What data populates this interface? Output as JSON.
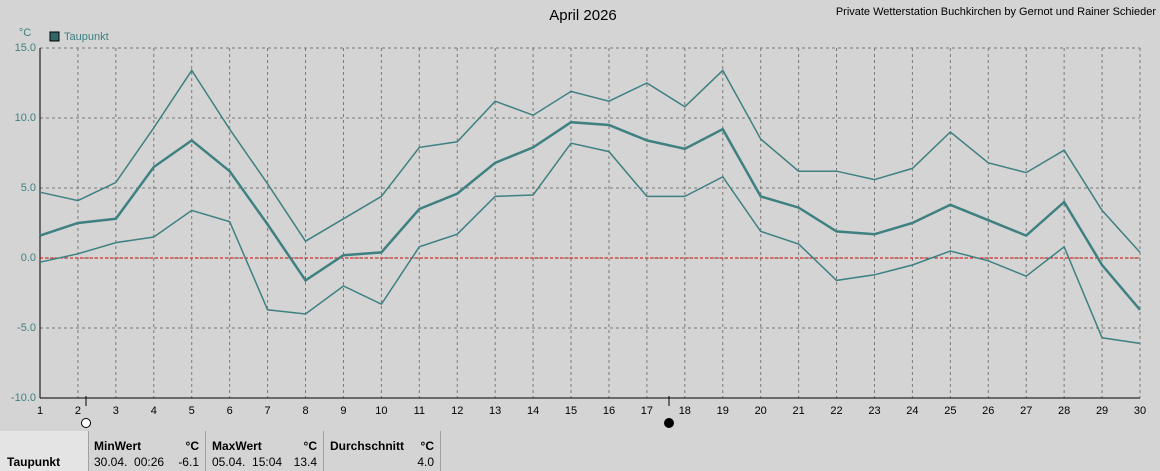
{
  "chart_data": {
    "type": "line",
    "title": "April 2026",
    "subtitle": "Private Wetterstation Buchkirchen by Gernot und Rainer Schieder",
    "y_label": "°C",
    "legend": "top-left",
    "grid": true,
    "hline": {
      "value": 0,
      "color": "#e00000"
    },
    "x": [
      1,
      2,
      3,
      4,
      5,
      6,
      7,
      8,
      9,
      10,
      11,
      12,
      13,
      14,
      15,
      16,
      17,
      18,
      19,
      20,
      21,
      22,
      23,
      24,
      25,
      26,
      27,
      28,
      29,
      30
    ],
    "xlim": [
      1,
      30
    ],
    "xticks": [
      1,
      2,
      3,
      4,
      5,
      6,
      7,
      8,
      9,
      10,
      11,
      12,
      13,
      14,
      15,
      16,
      17,
      18,
      19,
      20,
      21,
      22,
      23,
      24,
      25,
      26,
      27,
      28,
      29,
      30
    ],
    "ylim": [
      -10,
      15
    ],
    "yticks": [
      {
        "value": 15,
        "label": "15.0"
      },
      {
        "value": 10,
        "label": "10.0"
      },
      {
        "value": 5,
        "label": "5.0"
      },
      {
        "value": 0,
        "label": "0.0"
      },
      {
        "value": -5,
        "label": "-5.0"
      },
      {
        "value": -10,
        "label": "-10.0"
      }
    ],
    "series": [
      {
        "color": "#3f8080",
        "line_width": 1.5,
        "values": [
          4.7,
          4.1,
          5.4,
          9.3,
          13.4,
          9.2,
          5.3,
          1.2,
          2.8,
          4.4,
          7.9,
          8.3,
          11.2,
          10.2,
          11.9,
          11.2,
          12.5,
          10.8,
          13.4,
          8.5,
          6.2,
          6.2,
          5.6,
          6.4,
          9.0,
          6.8,
          6.1,
          7.7,
          3.4,
          0.4
        ]
      },
      {
        "name": "Taupunkt",
        "color": "#3f8080",
        "line_width": 2.5,
        "values": [
          1.6,
          2.5,
          2.8,
          6.5,
          8.4,
          6.2,
          2.4,
          -1.6,
          0.2,
          0.4,
          3.5,
          4.6,
          6.8,
          7.9,
          9.7,
          9.5,
          8.4,
          7.8,
          9.2,
          4.4,
          3.6,
          1.9,
          1.7,
          2.5,
          3.8,
          2.7,
          1.6,
          4.0,
          -0.5,
          -3.7
        ]
      },
      {
        "color": "#3f8080",
        "line_width": 1.5,
        "values": [
          -0.3,
          0.3,
          1.1,
          1.5,
          3.4,
          2.6,
          -3.7,
          -4.0,
          -2.0,
          -3.3,
          0.8,
          1.7,
          4.4,
          4.5,
          8.2,
          7.6,
          4.4,
          4.4,
          5.8,
          1.9,
          1.0,
          -1.6,
          -1.2,
          -0.5,
          0.5,
          -0.2,
          -1.3,
          0.8,
          -5.7,
          -6.1
        ]
      }
    ]
  },
  "stats": {
    "label": "Taupunkt",
    "columns": [
      {
        "header": "MinWert",
        "unit": "°C",
        "time": "30.04.  00:26",
        "value": "-6.1"
      },
      {
        "header": "MaxWert",
        "unit": "°C",
        "time": "05.04.  15:04",
        "value": "13.4"
      },
      {
        "header": "Durchschnitt",
        "unit": "°C",
        "value": "4.0"
      }
    ]
  }
}
